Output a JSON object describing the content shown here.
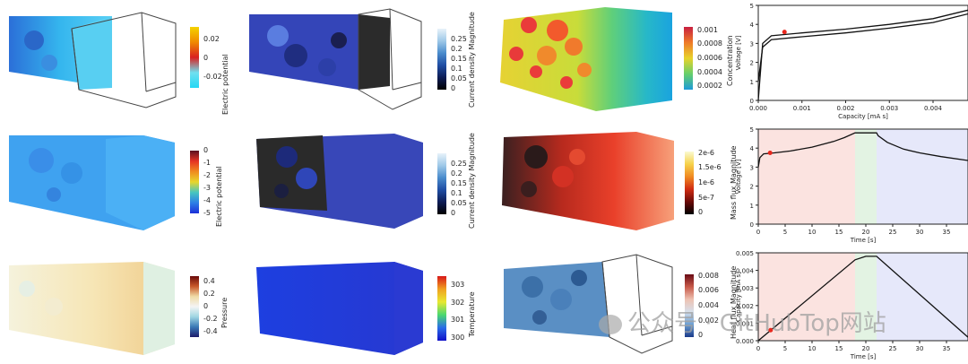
{
  "colorbars": [
    {
      "title": "Electric potential",
      "ticks": [
        "0.02",
        "0",
        "-0.02"
      ]
    },
    {
      "title": "Current density Magnitude",
      "ticks": [
        "0.25",
        "0.2",
        "0.15",
        "0.1",
        "0.05",
        "0"
      ]
    },
    {
      "title": "Concentration",
      "ticks": [
        "0.001",
        "0.0008",
        "0.0006",
        "0.0004",
        "0.0002"
      ]
    },
    {
      "title": "Electric potential",
      "ticks": [
        "0",
        "-1",
        "-2",
        "-3",
        "-4",
        "-5"
      ]
    },
    {
      "title": "Current density Magnitude",
      "ticks": [
        "0.25",
        "0.2",
        "0.15",
        "0.1",
        "0.05",
        "0"
      ]
    },
    {
      "title": "Mass flux Magnitude",
      "ticks": [
        "2e-6",
        "1.5e-6",
        "1e-6",
        "5e-7",
        "0"
      ]
    },
    {
      "title": "Pressure",
      "ticks": [
        "0.4",
        "0.2",
        "0",
        "-0.2",
        "-0.4"
      ]
    },
    {
      "title": "Temperature",
      "ticks": [
        "303",
        "302",
        "301",
        "300"
      ]
    },
    {
      "title": "Heat flux Magnitude",
      "ticks": [
        "0.008",
        "0.006",
        "0.004",
        "0.002",
        "0"
      ]
    }
  ],
  "chart_data": [
    {
      "type": "line",
      "xlabel": "Capacity [mA s]",
      "ylabel": "Voltage [V]",
      "xlim": [
        0,
        0.0048
      ],
      "ylim": [
        0,
        5
      ],
      "xticks": [
        "0.000",
        "0.001",
        "0.002",
        "0.003",
        "0.004"
      ],
      "yticks": [
        "0",
        "1",
        "2",
        "3",
        "4",
        "5"
      ],
      "series": [
        {
          "x": [
            0,
            0.0001,
            0.0003,
            0.001,
            0.002,
            0.003,
            0.004,
            0.0048
          ],
          "y": [
            0,
            3.0,
            3.4,
            3.55,
            3.75,
            4.0,
            4.3,
            4.75
          ]
        },
        {
          "x": [
            0,
            0.0001,
            0.0003,
            0.001,
            0.002,
            0.003,
            0.004,
            0.0048
          ],
          "y": [
            1.0,
            2.8,
            3.2,
            3.35,
            3.55,
            3.8,
            4.1,
            4.55
          ]
        }
      ],
      "marker": {
        "x": 0.0006,
        "y": 3.6
      }
    },
    {
      "type": "line",
      "xlabel": "Time [s]",
      "ylabel": "Voltage [V]",
      "xlim": [
        0,
        39
      ],
      "ylim": [
        0,
        5
      ],
      "xticks": [
        "0",
        "5",
        "10",
        "15",
        "20",
        "25",
        "30",
        "35"
      ],
      "yticks": [
        "0",
        "1",
        "2",
        "3",
        "4",
        "5"
      ],
      "regions": [
        {
          "from": 0,
          "to": 18,
          "color": "#fbe3e0"
        },
        {
          "from": 18,
          "to": 22,
          "color": "#e3f3e3"
        },
        {
          "from": 22,
          "to": 39,
          "color": "#e6e8fa"
        }
      ],
      "series": [
        {
          "x": [
            0,
            0.3,
            1,
            3,
            6,
            10,
            14,
            16,
            18,
            22,
            22.3,
            24,
            27,
            30,
            34,
            39
          ],
          "y": [
            3.0,
            3.5,
            3.7,
            3.75,
            3.85,
            4.05,
            4.35,
            4.55,
            4.8,
            4.8,
            4.65,
            4.3,
            3.95,
            3.75,
            3.55,
            3.35
          ]
        }
      ],
      "marker": {
        "x": 2.2,
        "y": 3.75
      }
    },
    {
      "type": "line",
      "xlabel": "Time [s]",
      "ylabel": "Capacity [mA s]",
      "xlim": [
        0,
        39
      ],
      "ylim": [
        0,
        0.005
      ],
      "xticks": [
        "0",
        "5",
        "10",
        "15",
        "20",
        "25",
        "30",
        "35"
      ],
      "yticks": [
        "0.000",
        "0.001",
        "0.002",
        "0.003",
        "0.004",
        "0.005"
      ],
      "regions": [
        {
          "from": 0,
          "to": 18,
          "color": "#fbe3e0"
        },
        {
          "from": 18,
          "to": 22,
          "color": "#e3f3e3"
        },
        {
          "from": 22,
          "to": 39,
          "color": "#e6e8fa"
        }
      ],
      "series": [
        {
          "x": [
            0,
            18,
            20,
            22,
            39
          ],
          "y": [
            0,
            0.0046,
            0.0048,
            0.0048,
            0.0002
          ]
        }
      ],
      "marker": {
        "x": 2.3,
        "y": 0.0006
      }
    }
  ],
  "watermark": "公众号 · GitHubTop网站"
}
